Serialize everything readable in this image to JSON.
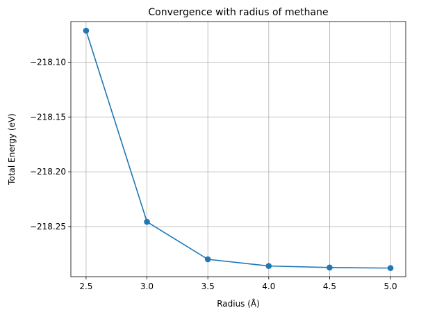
{
  "chart_data": {
    "type": "line",
    "title": "Convergence with radius of methane",
    "xlabel": "Radius (Å)",
    "ylabel": "Total Energy (eV)",
    "x": [
      2.5,
      3.0,
      3.5,
      4.0,
      4.5,
      5.0
    ],
    "series": [
      {
        "values": [
          -218.0713,
          -218.2456,
          -218.2798,
          -218.2859,
          -218.2873,
          -218.2878
        ],
        "color": "#1f77b4",
        "marker": "circle"
      }
    ],
    "x_ticks": [
      2.5,
      3.0,
      3.5,
      4.0,
      4.5,
      5.0
    ],
    "x_tick_labels": [
      "2.5",
      "3.0",
      "3.5",
      "4.0",
      "4.5",
      "5.0"
    ],
    "y_ticks": [
      -218.1,
      -218.15,
      -218.2,
      -218.25
    ],
    "y_tick_labels": [
      "−218.10",
      "−218.15",
      "−218.20",
      "−218.25"
    ],
    "xlim": [
      2.375,
      5.125
    ],
    "ylim": [
      -218.29564,
      -218.06298
    ],
    "grid": true,
    "grid_color": "#b0b0b0",
    "legend": "none"
  }
}
